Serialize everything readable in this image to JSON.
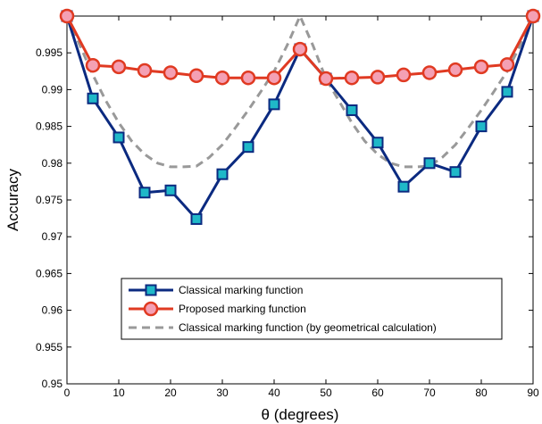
{
  "chart_data": {
    "type": "line",
    "title": "",
    "xlabel": "θ (degrees)",
    "ylabel": "Accuracy",
    "xlim": [
      0,
      90
    ],
    "ylim": [
      0.95,
      1.0
    ],
    "x_ticks": [
      "0",
      "10",
      "20",
      "30",
      "40",
      "50",
      "60",
      "70",
      "80",
      "90"
    ],
    "y_ticks": [
      "0.95",
      "0.955",
      "0.96",
      "0.965",
      "0.97",
      "0.975",
      "0.98",
      "0.985",
      "0.99",
      "0.995"
    ],
    "grid": false,
    "legend_position": "bottom-center",
    "series": [
      {
        "name": "Classical marking function",
        "color": "#0b2a80",
        "marker": "square",
        "marker_fill": "#1fb8c8",
        "line_style": "solid",
        "x": [
          0,
          5,
          10,
          15,
          20,
          25,
          30,
          35,
          40,
          45,
          50,
          55,
          60,
          65,
          70,
          75,
          80,
          85,
          90
        ],
        "y": [
          1.0,
          0.9888,
          0.9835,
          0.976,
          0.9763,
          0.9724,
          0.9785,
          0.9822,
          0.988,
          0.9955,
          0.9915,
          0.9872,
          0.9828,
          0.9768,
          0.98,
          0.9788,
          0.985,
          0.9897,
          1.0
        ]
      },
      {
        "name": "Proposed marking function",
        "color": "#e03a22",
        "marker": "circle",
        "marker_fill": "#f4a0b4",
        "line_style": "solid",
        "x": [
          0,
          5,
          10,
          15,
          20,
          25,
          30,
          35,
          40,
          45,
          50,
          55,
          60,
          65,
          70,
          75,
          80,
          85,
          90
        ],
        "y": [
          1.0,
          0.9933,
          0.9931,
          0.9926,
          0.9923,
          0.9919,
          0.9916,
          0.9916,
          0.9916,
          0.9955,
          0.9915,
          0.9916,
          0.9917,
          0.992,
          0.9923,
          0.9927,
          0.9931,
          0.9934,
          1.0
        ]
      },
      {
        "name": "Classical marking function (by geometrical calculation)",
        "color": "#999999",
        "marker": "none",
        "line_style": "dashed",
        "x": [
          0,
          2.5,
          5,
          7.5,
          10,
          12.5,
          15,
          17.5,
          20,
          22.5,
          25,
          27.5,
          30,
          32.5,
          35,
          37.5,
          40,
          42.5,
          45,
          47.5,
          50,
          52.5,
          55,
          57.5,
          60,
          62.5,
          65,
          67.5,
          70,
          72.5,
          75,
          77.5,
          80,
          82.5,
          85,
          87.5,
          90
        ],
        "y": [
          1.0,
          0.996,
          0.992,
          0.9885,
          0.9855,
          0.983,
          0.9812,
          0.98,
          0.9795,
          0.9795,
          0.9796,
          0.9808,
          0.9825,
          0.9848,
          0.9872,
          0.9898,
          0.9925,
          0.996,
          1.0,
          0.996,
          0.9915,
          0.9885,
          0.9855,
          0.983,
          0.9812,
          0.98,
          0.9795,
          0.9795,
          0.9796,
          0.9808,
          0.9825,
          0.9848,
          0.9872,
          0.9898,
          0.9925,
          0.996,
          1.0
        ]
      }
    ]
  }
}
